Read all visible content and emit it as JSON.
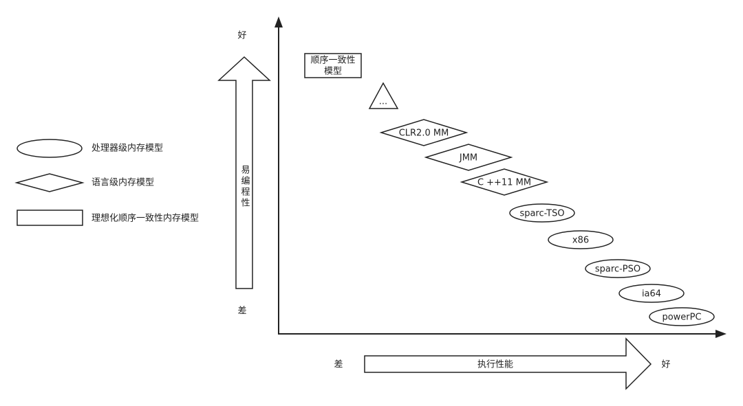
{
  "legend": [
    "处理器级内存模型",
    "语言级内存模型",
    "理想化顺序一致性内存模型"
  ],
  "y_axis": {
    "top_label": "好",
    "bottom_label": "差",
    "arrow_label": "易编程性"
  },
  "x_axis": {
    "left_label": "差",
    "right_label": "好",
    "arrow_label": "执行性能"
  },
  "ideal_model": [
    "顺序一致性",
    "模型"
  ],
  "nodes": [
    "...",
    "CLR2.0 MM",
    "JMM",
    "C ++11 MM",
    "sparc-TSO",
    "x86",
    "sparc-PSO",
    "ia64",
    "powerPC"
  ]
}
